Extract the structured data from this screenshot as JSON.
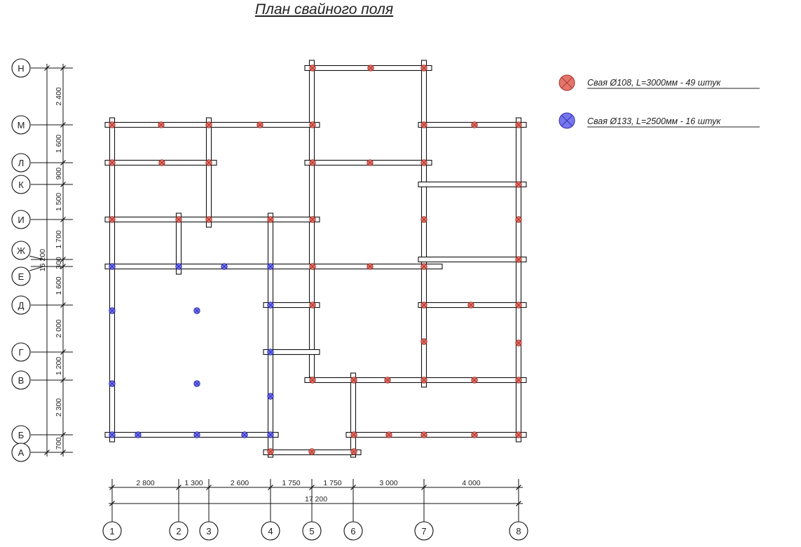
{
  "title": "План свайного поля",
  "legend": [
    {
      "label": "Свая Ø108, L=3000мм - 49 штук",
      "color": "#e2766c",
      "stroke": "#a8322c"
    },
    {
      "label": "Свая Ø133, L=2500мм - 16 штук",
      "color": "#7777ee",
      "stroke": "#2a2ab0"
    }
  ],
  "axes_x": [
    "1",
    "2",
    "3",
    "4",
    "5",
    "6",
    "7",
    "8"
  ],
  "axes_y": [
    "Н",
    "М",
    "Л",
    "К",
    "И",
    "Ж",
    "Е",
    "Д",
    "Г",
    "В",
    "Б",
    "А"
  ],
  "dims_x": [
    "2 800",
    "1 300",
    "2 600",
    "1 750",
    "1 750",
    "3 000",
    "4 000"
  ],
  "dims_y": [
    "2 400",
    "1 600",
    "900",
    "1 500",
    "1 700",
    "300",
    "1 600",
    "2 000",
    "1 200",
    "2 300",
    "700"
  ],
  "total_x": "17 200",
  "total_y": "16 200"
}
